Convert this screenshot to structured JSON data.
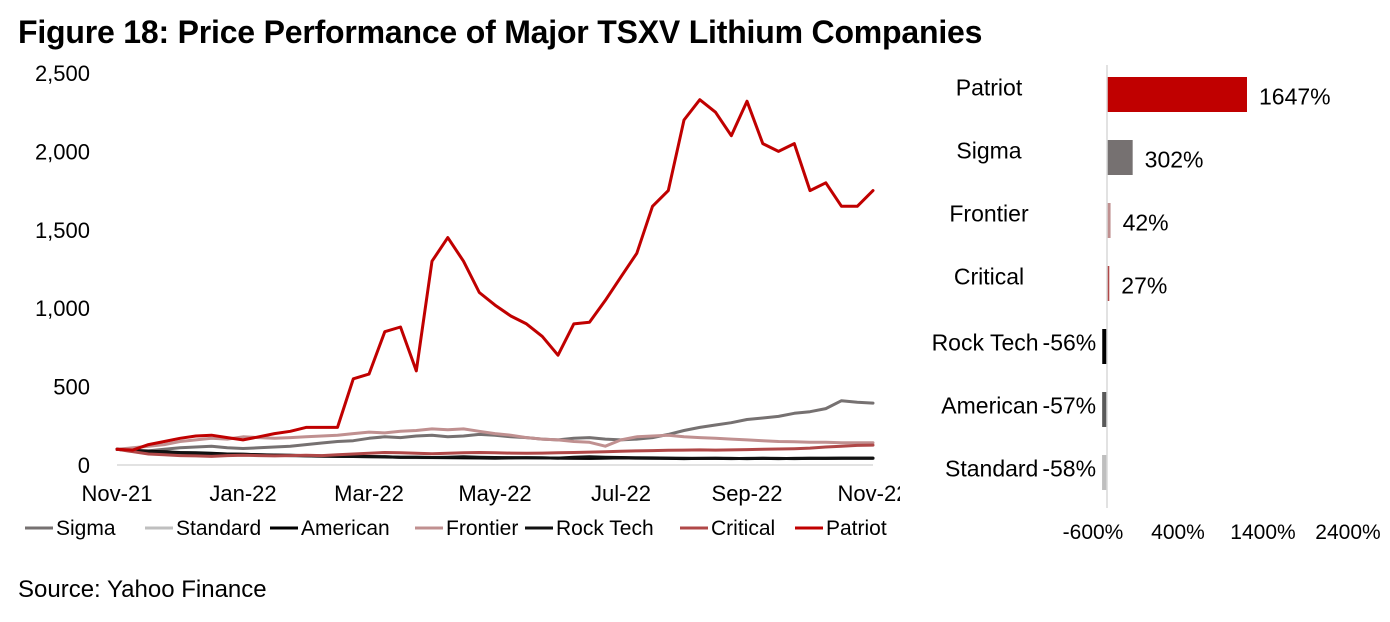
{
  "title": "Figure 18: Price Performance of Major TSXV Lithium Companies",
  "source": "Source: Yahoo Finance",
  "chart_data": [
    {
      "type": "line",
      "title": "",
      "xlabel": "",
      "ylabel": "",
      "ylim": [
        0,
        2500
      ],
      "yticks": [
        "0",
        "500",
        "1,000",
        "1,500",
        "2,000",
        "2,500"
      ],
      "ytick_values": [
        0,
        500,
        1000,
        1500,
        2000,
        2500
      ],
      "xticks": [
        "Nov-21",
        "Jan-22",
        "Mar-22",
        "May-22",
        "Jul-22",
        "Sep-22",
        "Nov-22"
      ],
      "x_months": [
        0,
        1,
        2,
        3,
        4,
        5,
        6,
        7,
        8,
        9,
        10,
        11,
        12
      ],
      "grid": false,
      "legend_position": "bottom",
      "x": [
        0,
        0.25,
        0.5,
        0.75,
        1,
        1.25,
        1.5,
        1.75,
        2,
        2.25,
        2.5,
        2.75,
        3,
        3.25,
        3.5,
        3.75,
        4,
        4.25,
        4.5,
        4.75,
        5,
        5.25,
        5.5,
        5.75,
        6,
        6.25,
        6.5,
        6.75,
        7,
        7.25,
        7.5,
        7.75,
        8,
        8.25,
        8.5,
        8.75,
        9,
        9.25,
        9.5,
        9.75,
        10,
        10.25,
        10.5,
        10.75,
        11,
        11.25,
        11.5,
        11.75,
        12
      ],
      "series": [
        {
          "name": "Sigma",
          "color": "#767171",
          "values": [
            100,
            95,
            90,
            100,
            110,
            115,
            120,
            110,
            105,
            110,
            115,
            120,
            130,
            140,
            150,
            155,
            170,
            180,
            175,
            185,
            190,
            180,
            185,
            195,
            190,
            180,
            175,
            165,
            160,
            170,
            175,
            165,
            160,
            165,
            175,
            195,
            220,
            240,
            255,
            270,
            290,
            300,
            310,
            330,
            340,
            360,
            410,
            400,
            395
          ]
        },
        {
          "name": "Standard",
          "color": "#BFBFBF",
          "values": [
            100,
            90,
            85,
            80,
            75,
            72,
            70,
            68,
            65,
            63,
            60,
            62,
            58,
            56,
            55,
            54,
            52,
            50,
            48,
            47,
            46,
            45,
            44,
            43,
            42,
            44,
            46,
            45,
            44,
            43,
            42,
            44,
            45,
            44,
            43,
            42,
            41,
            42,
            43,
            42,
            41,
            42,
            41,
            42,
            43,
            42,
            42,
            42,
            42
          ]
        },
        {
          "name": "American",
          "color": "#000000",
          "values": [
            100,
            92,
            88,
            85,
            80,
            78,
            75,
            70,
            68,
            66,
            64,
            62,
            60,
            58,
            56,
            55,
            54,
            52,
            50,
            49,
            48,
            47,
            46,
            45,
            44,
            45,
            46,
            45,
            44,
            43,
            42,
            44,
            45,
            44,
            43,
            42,
            41,
            42,
            43,
            42,
            41,
            42,
            41,
            42,
            43,
            42,
            43,
            43,
            43
          ]
        },
        {
          "name": "Frontier",
          "color": "#C09090",
          "values": [
            100,
            110,
            120,
            130,
            150,
            160,
            170,
            165,
            180,
            175,
            170,
            175,
            180,
            185,
            190,
            200,
            210,
            205,
            215,
            220,
            230,
            225,
            230,
            215,
            200,
            190,
            175,
            165,
            160,
            150,
            145,
            120,
            160,
            180,
            185,
            190,
            180,
            175,
            170,
            165,
            160,
            155,
            150,
            148,
            145,
            145,
            142,
            142,
            142
          ]
        },
        {
          "name": "Rock Tech",
          "color": "#111111",
          "values": [
            100,
            90,
            85,
            80,
            78,
            75,
            72,
            70,
            68,
            65,
            62,
            60,
            58,
            56,
            55,
            54,
            52,
            52,
            50,
            49,
            48,
            50,
            52,
            50,
            48,
            47,
            46,
            45,
            44,
            50,
            52,
            50,
            48,
            46,
            45,
            44,
            43,
            42,
            42,
            41,
            42,
            43,
            42,
            41,
            42,
            43,
            44,
            44,
            44
          ]
        },
        {
          "name": "Critical",
          "color": "#B04848",
          "values": [
            100,
            85,
            70,
            65,
            60,
            58,
            55,
            60,
            62,
            60,
            58,
            60,
            62,
            60,
            65,
            70,
            75,
            80,
            78,
            75,
            72,
            75,
            78,
            80,
            78,
            76,
            75,
            76,
            78,
            80,
            82,
            85,
            88,
            90,
            92,
            94,
            95,
            96,
            95,
            96,
            98,
            100,
            102,
            104,
            108,
            115,
            120,
            125,
            127
          ]
        },
        {
          "name": "Patriot",
          "color": "#C00000",
          "values": [
            100,
            95,
            130,
            150,
            170,
            185,
            190,
            175,
            160,
            180,
            200,
            215,
            240,
            240,
            240,
            550,
            580,
            850,
            880,
            600,
            1300,
            1450,
            1300,
            1100,
            1020,
            950,
            900,
            820,
            700,
            900,
            910,
            1050,
            1200,
            1350,
            1650,
            1750,
            2200,
            2330,
            2250,
            2100,
            2320,
            2050,
            2000,
            2050,
            1750,
            1800,
            1650,
            1650,
            1750
          ]
        }
      ]
    },
    {
      "type": "bar",
      "orientation": "horizontal",
      "title": "",
      "xlabel": "",
      "ylabel": "",
      "xlim": [
        -600,
        2400
      ],
      "xticks": [
        "-600%",
        "400%",
        "1400%",
        "2400%"
      ],
      "xtick_values": [
        -600,
        400,
        1400,
        2400
      ],
      "categories": [
        "Patriot",
        "Sigma",
        "Frontier",
        "Critical",
        "Rock Tech",
        "American",
        "Standard"
      ],
      "values": [
        1647,
        302,
        42,
        27,
        -56,
        -57,
        -58
      ],
      "labels": [
        "1647%",
        "302%",
        "42%",
        "27%",
        "-56%",
        "-57%",
        "-58%"
      ],
      "colors": [
        "#C00000",
        "#767171",
        "#C09090",
        "#B04848",
        "#000000",
        "#595959",
        "#BFBFBF"
      ],
      "grid": false
    }
  ]
}
